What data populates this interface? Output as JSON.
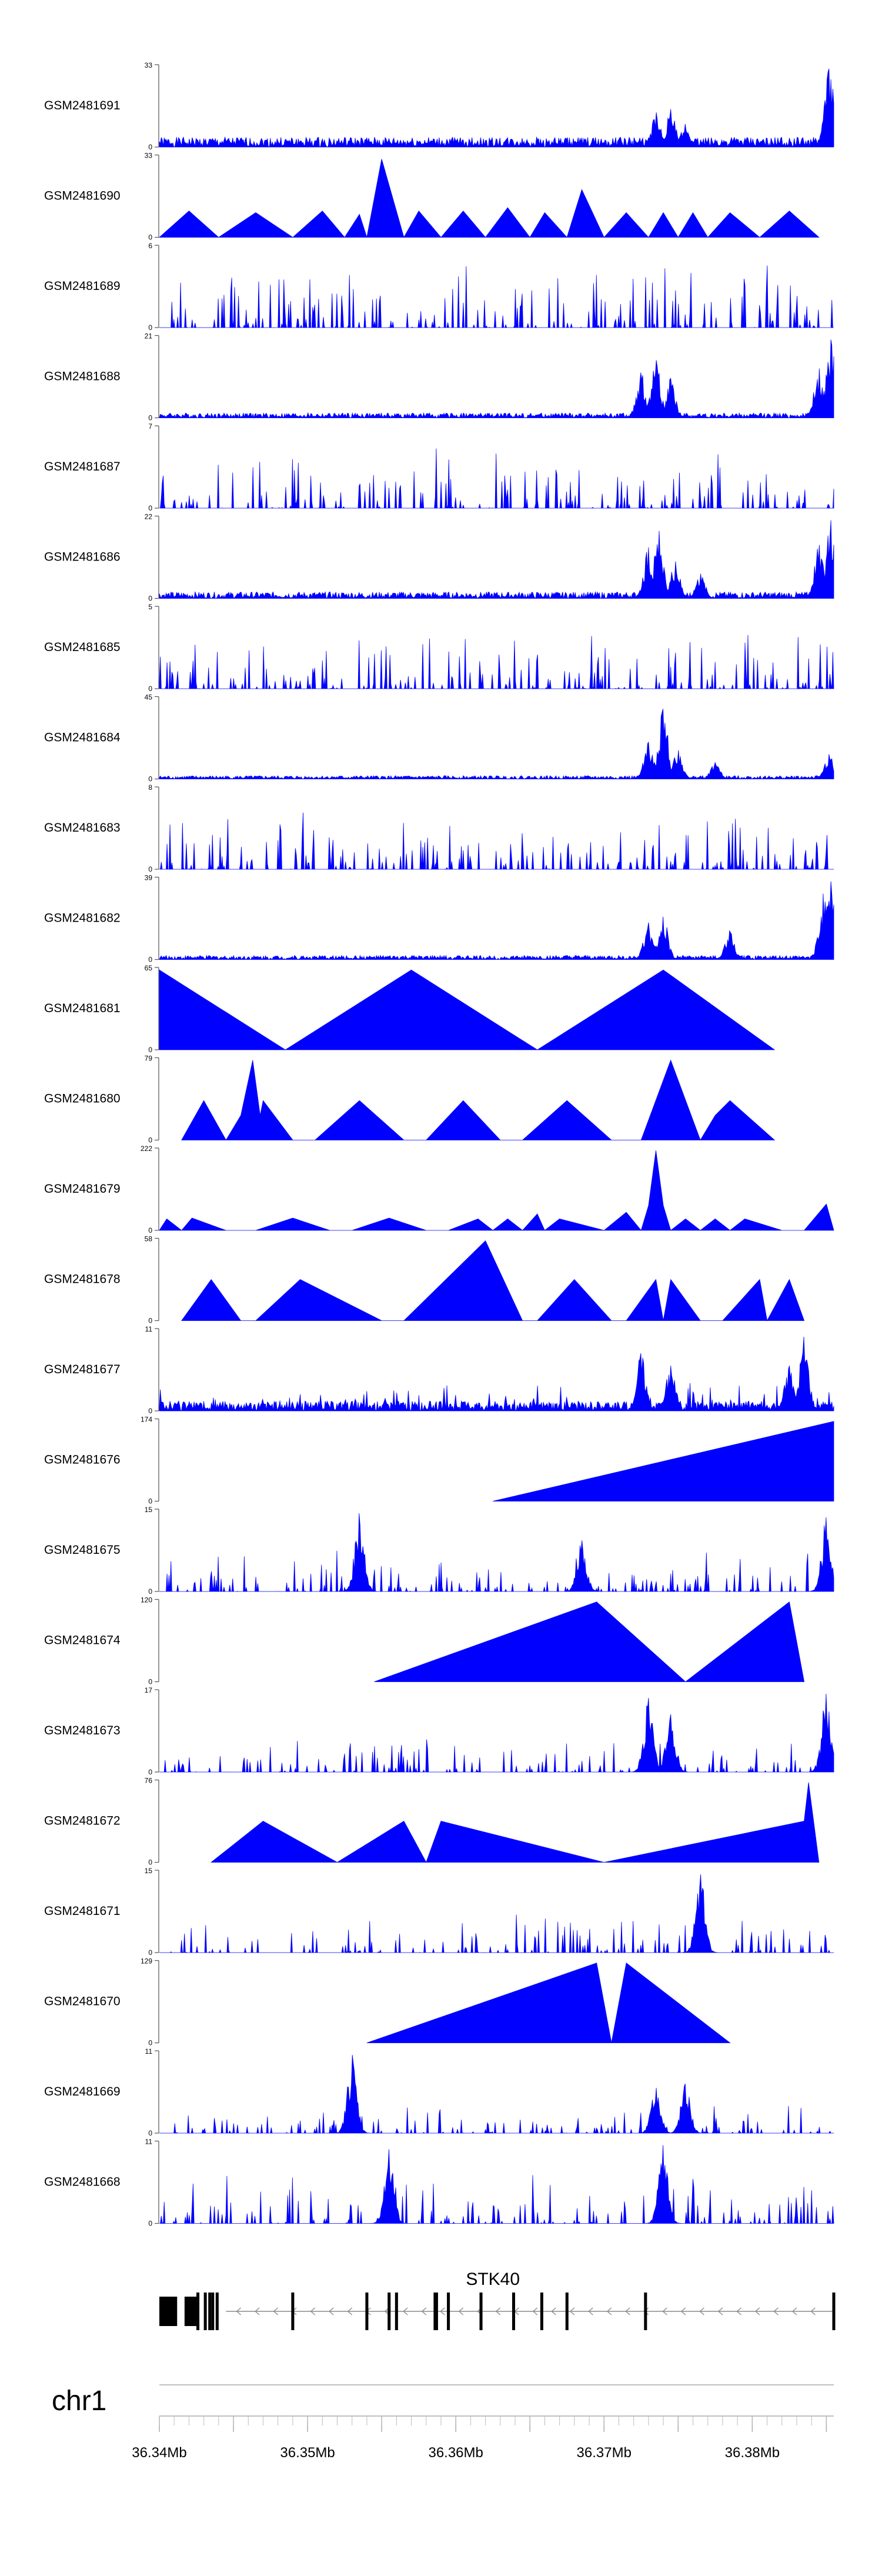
{
  "chart_data": {
    "type": "area",
    "x_unit": "Mb",
    "xlim": [
      36.34,
      36.3855
    ],
    "series_color": "#0000ff",
    "tracks": [
      {
        "name": "GSM2481691",
        "ymax": 33,
        "ymin": 0,
        "peaks": [
          [
            36.3735,
            0.42
          ],
          [
            36.3745,
            0.46
          ],
          [
            36.3755,
            0.28
          ],
          [
            36.3852,
            0.95
          ]
        ],
        "base": 0.12,
        "seed": 1
      },
      {
        "name": "GSM2481690",
        "ymax": 33,
        "ymin": 0,
        "tri": [
          [
            36.34,
            0
          ],
          [
            36.342,
            0.32
          ],
          [
            36.344,
            0
          ],
          [
            36.3465,
            0.3
          ],
          [
            36.349,
            0
          ],
          [
            36.351,
            0.32
          ],
          [
            36.3525,
            0
          ],
          [
            36.3535,
            0.28
          ],
          [
            36.354,
            0
          ],
          [
            36.355,
            0.95
          ],
          [
            36.3565,
            0
          ],
          [
            36.3575,
            0.32
          ],
          [
            36.359,
            0
          ],
          [
            36.3605,
            0.32
          ],
          [
            36.362,
            0
          ],
          [
            36.3635,
            0.36
          ],
          [
            36.365,
            0
          ],
          [
            36.366,
            0.3
          ],
          [
            36.3675,
            0
          ],
          [
            36.3685,
            0.58
          ],
          [
            36.37,
            0
          ],
          [
            36.3715,
            0.3
          ],
          [
            36.373,
            0
          ],
          [
            36.374,
            0.3
          ],
          [
            36.375,
            0
          ],
          [
            36.376,
            0.3
          ],
          [
            36.377,
            0
          ],
          [
            36.3785,
            0.3
          ],
          [
            36.3805,
            0
          ],
          [
            36.3825,
            0.32
          ],
          [
            36.3845,
            0
          ]
        ]
      },
      {
        "name": "GSM2481689",
        "ymax": 6,
        "ymin": 0,
        "noise": 0.85,
        "seed": 3
      },
      {
        "name": "GSM2481688",
        "ymax": 21,
        "ymin": 0,
        "peaks": [
          [
            36.3725,
            0.55
          ],
          [
            36.3735,
            0.7
          ],
          [
            36.3745,
            0.48
          ],
          [
            36.3845,
            0.6
          ],
          [
            36.3853,
            0.95
          ]
        ],
        "base": 0.06,
        "seed": 4
      },
      {
        "name": "GSM2481687",
        "ymax": 7,
        "ymin": 0,
        "noise": 0.8,
        "seed": 5
      },
      {
        "name": "GSM2481686",
        "ymax": 22,
        "ymin": 0,
        "peaks": [
          [
            36.373,
            0.62
          ],
          [
            36.3737,
            0.82
          ],
          [
            36.3748,
            0.45
          ],
          [
            36.3765,
            0.3
          ],
          [
            36.3845,
            0.65
          ],
          [
            36.3853,
            0.95
          ]
        ],
        "base": 0.08,
        "seed": 6
      },
      {
        "name": "GSM2481685",
        "ymax": 5,
        "ymin": 0,
        "noise": 0.75,
        "seed": 7
      },
      {
        "name": "GSM2481684",
        "ymax": 45,
        "ymin": 0,
        "peaks": [
          [
            36.373,
            0.45
          ],
          [
            36.374,
            0.85
          ],
          [
            36.375,
            0.35
          ],
          [
            36.3775,
            0.2
          ],
          [
            36.3852,
            0.3
          ]
        ],
        "base": 0.04,
        "seed": 8
      },
      {
        "name": "GSM2481683",
        "ymax": 8,
        "ymin": 0,
        "noise": 0.75,
        "seed": 9
      },
      {
        "name": "GSM2481682",
        "ymax": 39,
        "ymin": 0,
        "peaks": [
          [
            36.373,
            0.45
          ],
          [
            36.374,
            0.52
          ],
          [
            36.3785,
            0.35
          ],
          [
            36.3848,
            0.8
          ],
          [
            36.3853,
            0.95
          ]
        ],
        "base": 0.05,
        "seed": 10
      },
      {
        "name": "GSM2481681",
        "ymax": 65,
        "ymin": 0,
        "tri": [
          [
            36.34,
            0.97
          ],
          [
            36.3485,
            0
          ],
          [
            36.357,
            0.97
          ],
          [
            36.3655,
            0
          ],
          [
            36.374,
            0.97
          ],
          [
            36.3815,
            0
          ]
        ]
      },
      {
        "name": "GSM2481680",
        "ymax": 79,
        "ymin": 0,
        "tri": [
          [
            36.3415,
            0
          ],
          [
            36.343,
            0.48
          ],
          [
            36.3445,
            0
          ],
          [
            36.3455,
            0.3
          ],
          [
            36.3463,
            0.97
          ],
          [
            36.3468,
            0.3
          ],
          [
            36.347,
            0.48
          ],
          [
            36.349,
            0
          ],
          [
            36.3505,
            0
          ],
          [
            36.3535,
            0.48
          ],
          [
            36.3565,
            0
          ],
          [
            36.358,
            0
          ],
          [
            36.3605,
            0.48
          ],
          [
            36.363,
            0
          ],
          [
            36.3645,
            0
          ],
          [
            36.3675,
            0.48
          ],
          [
            36.3705,
            0
          ],
          [
            36.3725,
            0
          ],
          [
            36.3745,
            0.97
          ],
          [
            36.3765,
            0
          ],
          [
            36.3775,
            0.3
          ],
          [
            36.3785,
            0.48
          ],
          [
            36.3815,
            0
          ]
        ]
      },
      {
        "name": "GSM2481679",
        "ymax": 222,
        "ymin": 0,
        "tri": [
          [
            36.34,
            0
          ],
          [
            36.3405,
            0.14
          ],
          [
            36.3415,
            0
          ],
          [
            36.3422,
            0.15
          ],
          [
            36.3445,
            0
          ],
          [
            36.3465,
            0
          ],
          [
            36.349,
            0.15
          ],
          [
            36.3515,
            0
          ],
          [
            36.353,
            0
          ],
          [
            36.3555,
            0.15
          ],
          [
            36.358,
            0
          ],
          [
            36.3595,
            0
          ],
          [
            36.3615,
            0.14
          ],
          [
            36.3625,
            0
          ],
          [
            36.3635,
            0.14
          ],
          [
            36.3645,
            0
          ],
          [
            36.3655,
            0.2
          ],
          [
            36.366,
            0
          ],
          [
            36.367,
            0.14
          ],
          [
            36.37,
            0
          ],
          [
            36.3715,
            0.22
          ],
          [
            36.3725,
            0
          ],
          [
            36.373,
            0.3
          ],
          [
            36.3735,
            0.97
          ],
          [
            36.374,
            0.3
          ],
          [
            36.3745,
            0
          ],
          [
            36.3755,
            0.14
          ],
          [
            36.3765,
            0
          ],
          [
            36.3775,
            0.14
          ],
          [
            36.3785,
            0
          ],
          [
            36.3795,
            0.14
          ],
          [
            36.382,
            0
          ],
          [
            36.3835,
            0
          ],
          [
            36.385,
            0.32
          ],
          [
            36.3855,
            0
          ]
        ]
      },
      {
        "name": "GSM2481678",
        "ymax": 58,
        "ymin": 0,
        "tri": [
          [
            36.3415,
            0
          ],
          [
            36.3435,
            0.5
          ],
          [
            36.3455,
            0
          ],
          [
            36.3465,
            0
          ],
          [
            36.3495,
            0.5
          ],
          [
            36.355,
            0
          ],
          [
            36.3565,
            0
          ],
          [
            36.362,
            0.97
          ],
          [
            36.3645,
            0
          ],
          [
            36.3655,
            0
          ],
          [
            36.368,
            0.5
          ],
          [
            36.3705,
            0
          ],
          [
            36.3715,
            0
          ],
          [
            36.3735,
            0.5
          ],
          [
            36.374,
            0
          ],
          [
            36.3745,
            0.5
          ],
          [
            36.3765,
            0
          ],
          [
            36.378,
            0
          ],
          [
            36.3805,
            0.5
          ],
          [
            36.381,
            0
          ],
          [
            36.3825,
            0.5
          ],
          [
            36.3835,
            0
          ]
        ]
      },
      {
        "name": "GSM2481677",
        "ymax": 11,
        "ymin": 0,
        "peaks": [
          [
            36.3725,
            0.7
          ],
          [
            36.3745,
            0.55
          ],
          [
            36.3825,
            0.55
          ],
          [
            36.3835,
            0.9
          ]
        ],
        "noise": 0.35,
        "base": 0.12,
        "seed": 14
      },
      {
        "name": "GSM2481676",
        "ymax": 174,
        "ymin": 0,
        "tri": [
          [
            36.3625,
            0
          ],
          [
            36.3855,
            0.97
          ],
          [
            36.3855,
            0
          ]
        ]
      },
      {
        "name": "GSM2481675",
        "ymax": 15,
        "ymin": 0,
        "noise": 0.55,
        "seed": 16,
        "peaks": [
          [
            36.3535,
            0.95
          ],
          [
            36.3685,
            0.62
          ],
          [
            36.385,
            0.9
          ]
        ]
      },
      {
        "name": "GSM2481674",
        "ymax": 120,
        "ymin": 0,
        "tri": [
          [
            36.3545,
            0
          ],
          [
            36.3695,
            0.97
          ],
          [
            36.3755,
            0
          ],
          [
            36.3825,
            0.97
          ],
          [
            36.3835,
            0
          ]
        ]
      },
      {
        "name": "GSM2481673",
        "ymax": 17,
        "ymin": 0,
        "noise": 0.45,
        "seed": 18,
        "peaks": [
          [
            36.373,
            0.9
          ],
          [
            36.3745,
            0.7
          ],
          [
            36.385,
            0.95
          ]
        ]
      },
      {
        "name": "GSM2481672",
        "ymax": 76,
        "ymin": 0,
        "tri": [
          [
            36.3435,
            0
          ],
          [
            36.347,
            0.5
          ],
          [
            36.352,
            0
          ],
          [
            36.3565,
            0.5
          ],
          [
            36.358,
            0
          ],
          [
            36.359,
            0.5
          ],
          [
            36.37,
            0
          ],
          [
            36.3835,
            0.5
          ],
          [
            36.3838,
            0.97
          ],
          [
            36.3845,
            0
          ]
        ]
      },
      {
        "name": "GSM2481671",
        "ymax": 15,
        "ymin": 0,
        "noise": 0.5,
        "seed": 21,
        "peaks": [
          [
            36.3765,
            0.95
          ]
        ]
      },
      {
        "name": "GSM2481670",
        "ymax": 129,
        "ymin": 0,
        "tri": [
          [
            36.354,
            0
          ],
          [
            36.3695,
            0.97
          ],
          [
            36.3705,
            0
          ],
          [
            36.3715,
            0.97
          ],
          [
            36.3785,
            0
          ]
        ]
      },
      {
        "name": "GSM2481669",
        "ymax": 11,
        "ymin": 0,
        "noise": 0.38,
        "seed": 23,
        "peaks": [
          [
            36.353,
            0.95
          ],
          [
            36.3735,
            0.55
          ],
          [
            36.3755,
            0.6
          ]
        ]
      },
      {
        "name": "GSM2481668",
        "ymax": 11,
        "ymin": 0,
        "noise": 0.7,
        "seed": 24,
        "peaks": [
          [
            36.3555,
            0.9
          ],
          [
            36.374,
            0.95
          ]
        ]
      }
    ],
    "gene": {
      "label": "STK40",
      "exons_mb": [
        [
          36.34,
          36.3412
        ],
        [
          36.3417,
          36.3425
        ],
        [
          36.3425,
          36.3427
        ],
        [
          36.343,
          36.3432
        ],
        [
          36.3433,
          36.3434
        ],
        [
          36.3435,
          36.3437
        ],
        [
          36.3438,
          36.344
        ],
        [
          36.3489,
          36.3491
        ],
        [
          36.3539,
          36.3541
        ],
        [
          36.3554,
          36.3556
        ],
        [
          36.3559,
          36.3561
        ],
        [
          36.3585,
          36.3588
        ],
        [
          36.3594,
          36.3596
        ],
        [
          36.3616,
          36.3618
        ],
        [
          36.3638,
          36.364
        ],
        [
          36.3657,
          36.3659
        ],
        [
          36.3674,
          36.3676
        ],
        [
          36.3727,
          36.3729
        ],
        [
          36.3854,
          36.3856
        ]
      ],
      "intron_start": 36.3445,
      "intron_end": 36.3855,
      "strand": "minus"
    },
    "chromosome": "chr1",
    "axis": {
      "ticks": [
        36.34,
        36.345,
        36.35,
        36.355,
        36.36,
        36.365,
        36.37,
        36.375,
        36.38,
        36.385
      ],
      "labels": [
        {
          "value": 36.34,
          "text": "36.34Mb"
        },
        {
          "value": 36.35,
          "text": "36.35Mb"
        },
        {
          "value": 36.36,
          "text": "36.36Mb"
        },
        {
          "value": 36.37,
          "text": "36.37Mb"
        },
        {
          "value": 36.38,
          "text": "36.38Mb"
        }
      ]
    }
  }
}
